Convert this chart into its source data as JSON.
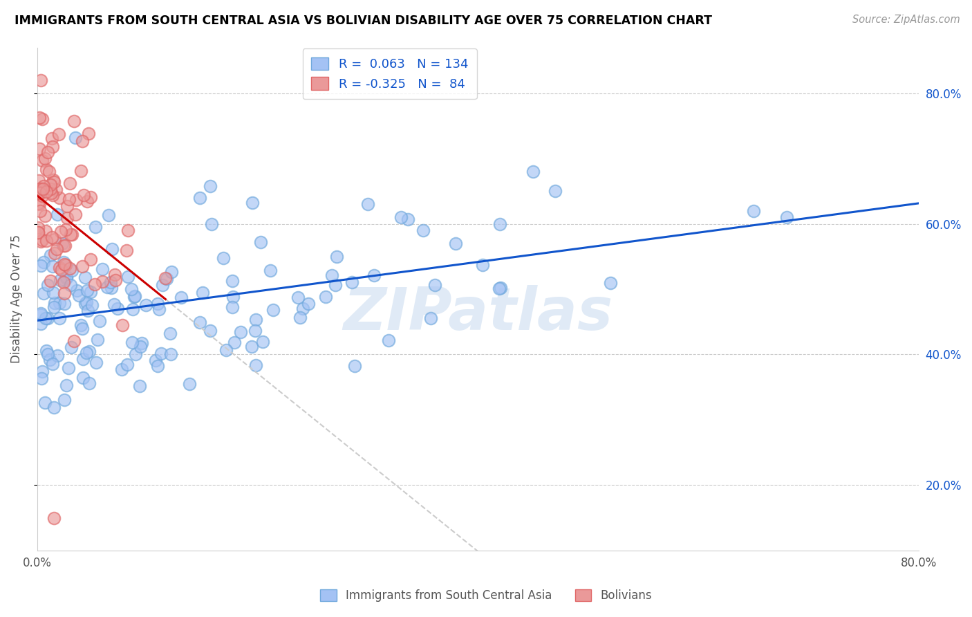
{
  "title": "IMMIGRANTS FROM SOUTH CENTRAL ASIA VS BOLIVIAN DISABILITY AGE OVER 75 CORRELATION CHART",
  "source": "Source: ZipAtlas.com",
  "ylabel": "Disability Age Over 75",
  "r_blue": 0.063,
  "n_blue": 134,
  "r_pink": -0.325,
  "n_pink": 84,
  "legend_label_blue": "Immigrants from South Central Asia",
  "legend_label_pink": "Bolivians",
  "blue_face_color": "#a4c2f4",
  "pink_face_color": "#ea9999",
  "blue_edge_color": "#6fa8dc",
  "pink_edge_color": "#e06666",
  "blue_line_color": "#1155cc",
  "pink_line_color": "#cc0000",
  "dash_color": "#cccccc",
  "grid_color": "#cccccc",
  "watermark": "ZIPatlas",
  "title_color": "#000000",
  "source_color": "#999999",
  "tick_color_right": "#1155cc",
  "label_color": "#555555",
  "xmin": 0,
  "xmax": 80,
  "ymin": 10,
  "ymax": 87,
  "ytick_vals": [
    20,
    40,
    60,
    80
  ],
  "yticklabels": [
    "20.0%",
    "40.0%",
    "60.0%",
    "80.0%"
  ],
  "xtick_vals": [
    0,
    80
  ],
  "xticklabels": [
    "0.0%",
    "80.0%"
  ]
}
